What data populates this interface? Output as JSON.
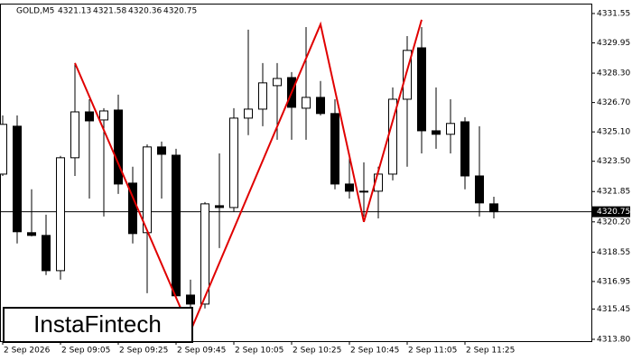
{
  "chart_data": {
    "type": "candlestick",
    "symbol": "GOLD,M5",
    "header_values": [
      4321.13,
      4321.58,
      4320.36,
      4320.75
    ],
    "watermark": "InstaFintech",
    "categories": [
      "2 Sep 2026",
      null,
      null,
      null,
      "2 Sep 09:05",
      null,
      null,
      null,
      "2 Sep 09:25",
      null,
      null,
      null,
      "2 Sep 09:45",
      null,
      null,
      null,
      "2 Sep 10:05",
      null,
      null,
      null,
      "2 Sep 10:25",
      null,
      null,
      null,
      "2 Sep 10:45",
      null,
      null,
      null,
      "2 Sep 11:05",
      null,
      null,
      null,
      "2 Sep 11:25",
      null,
      null
    ],
    "open": [
      4322.8,
      4325.41,
      4319.61,
      4319.46,
      4317.54,
      4323.69,
      4326.19,
      4325.75,
      4326.29,
      4322.31,
      4319.61,
      4324.28,
      4323.83,
      4316.21,
      4315.72,
      4321.08,
      4320.98,
      4325.85,
      4326.34,
      4327.62,
      4328.06,
      4326.39,
      4326.98,
      4326.1,
      4322.26,
      4321.87,
      4321.87,
      4322.8,
      4326.88,
      4329.68,
      4325.16,
      4324.97,
      4325.65,
      4322.7,
      4321.18
    ],
    "high": [
      4326.0,
      4326.0,
      4321.97,
      4320.59,
      4323.79,
      4328.85,
      4326.88,
      4326.39,
      4327.13,
      4323.2,
      4324.42,
      4324.57,
      4324.18,
      4317.05,
      4321.28,
      4323.93,
      4326.39,
      4330.67,
      4328.85,
      4328.85,
      4328.36,
      4330.81,
      4327.87,
      4326.88,
      4323.93,
      4323.44,
      4323.2,
      4327.52,
      4330.32,
      4330.81,
      4327.52,
      4326.88,
      4325.9,
      4325.41,
      4321.57
    ],
    "low": [
      4322.7,
      4319.02,
      4319.41,
      4317.3,
      4317.05,
      4322.7,
      4321.47,
      4320.49,
      4321.72,
      4319.02,
      4316.31,
      4321.47,
      4316.07,
      4315.08,
      4315.48,
      4318.77,
      4320.74,
      4324.92,
      4325.41,
      4324.67,
      4324.67,
      4324.67,
      4326.0,
      4321.97,
      4321.47,
      4320.49,
      4320.39,
      4322.46,
      4323.2,
      4323.93,
      4324.18,
      4323.93,
      4321.97,
      4320.49,
      4320.39
    ],
    "close": [
      4325.51,
      4319.66,
      4319.46,
      4317.54,
      4323.69,
      4326.19,
      4325.7,
      4326.24,
      4322.26,
      4319.56,
      4324.28,
      4323.88,
      4316.17,
      4315.72,
      4321.18,
      4320.98,
      4325.85,
      4326.34,
      4327.77,
      4328.01,
      4326.44,
      4326.98,
      4326.1,
      4322.26,
      4321.87,
      4321.87,
      4322.8,
      4326.88,
      4329.54,
      4325.16,
      4324.97,
      4325.56,
      4322.7,
      4321.23,
      4320.75
    ],
    "current_price": 4320.75,
    "pattern": {
      "color": "#e00000",
      "x": [
        5,
        13,
        22,
        25,
        29
      ],
      "y": [
        4328.85,
        4314.25,
        4330.96,
        4320.2,
        4331.21
      ]
    },
    "ylim": [
      4313.7,
      4332.04
    ],
    "yticks": [
      4331.55,
      4329.95,
      {
        "value": 4328.3,
        "label": "4328.30"
      },
      {
        "value": 4326.7,
        "label": "4326.70"
      },
      {
        "value": 4325.1,
        "label": "4325.10"
      },
      {
        "value": 4323.5,
        "label": "4323.50"
      },
      4321.85,
      {
        "value": 4320.2,
        "label": "4320.20"
      },
      4318.55,
      4316.95,
      4315.45,
      {
        "value": 4313.8,
        "label": "4313.80"
      }
    ]
  }
}
